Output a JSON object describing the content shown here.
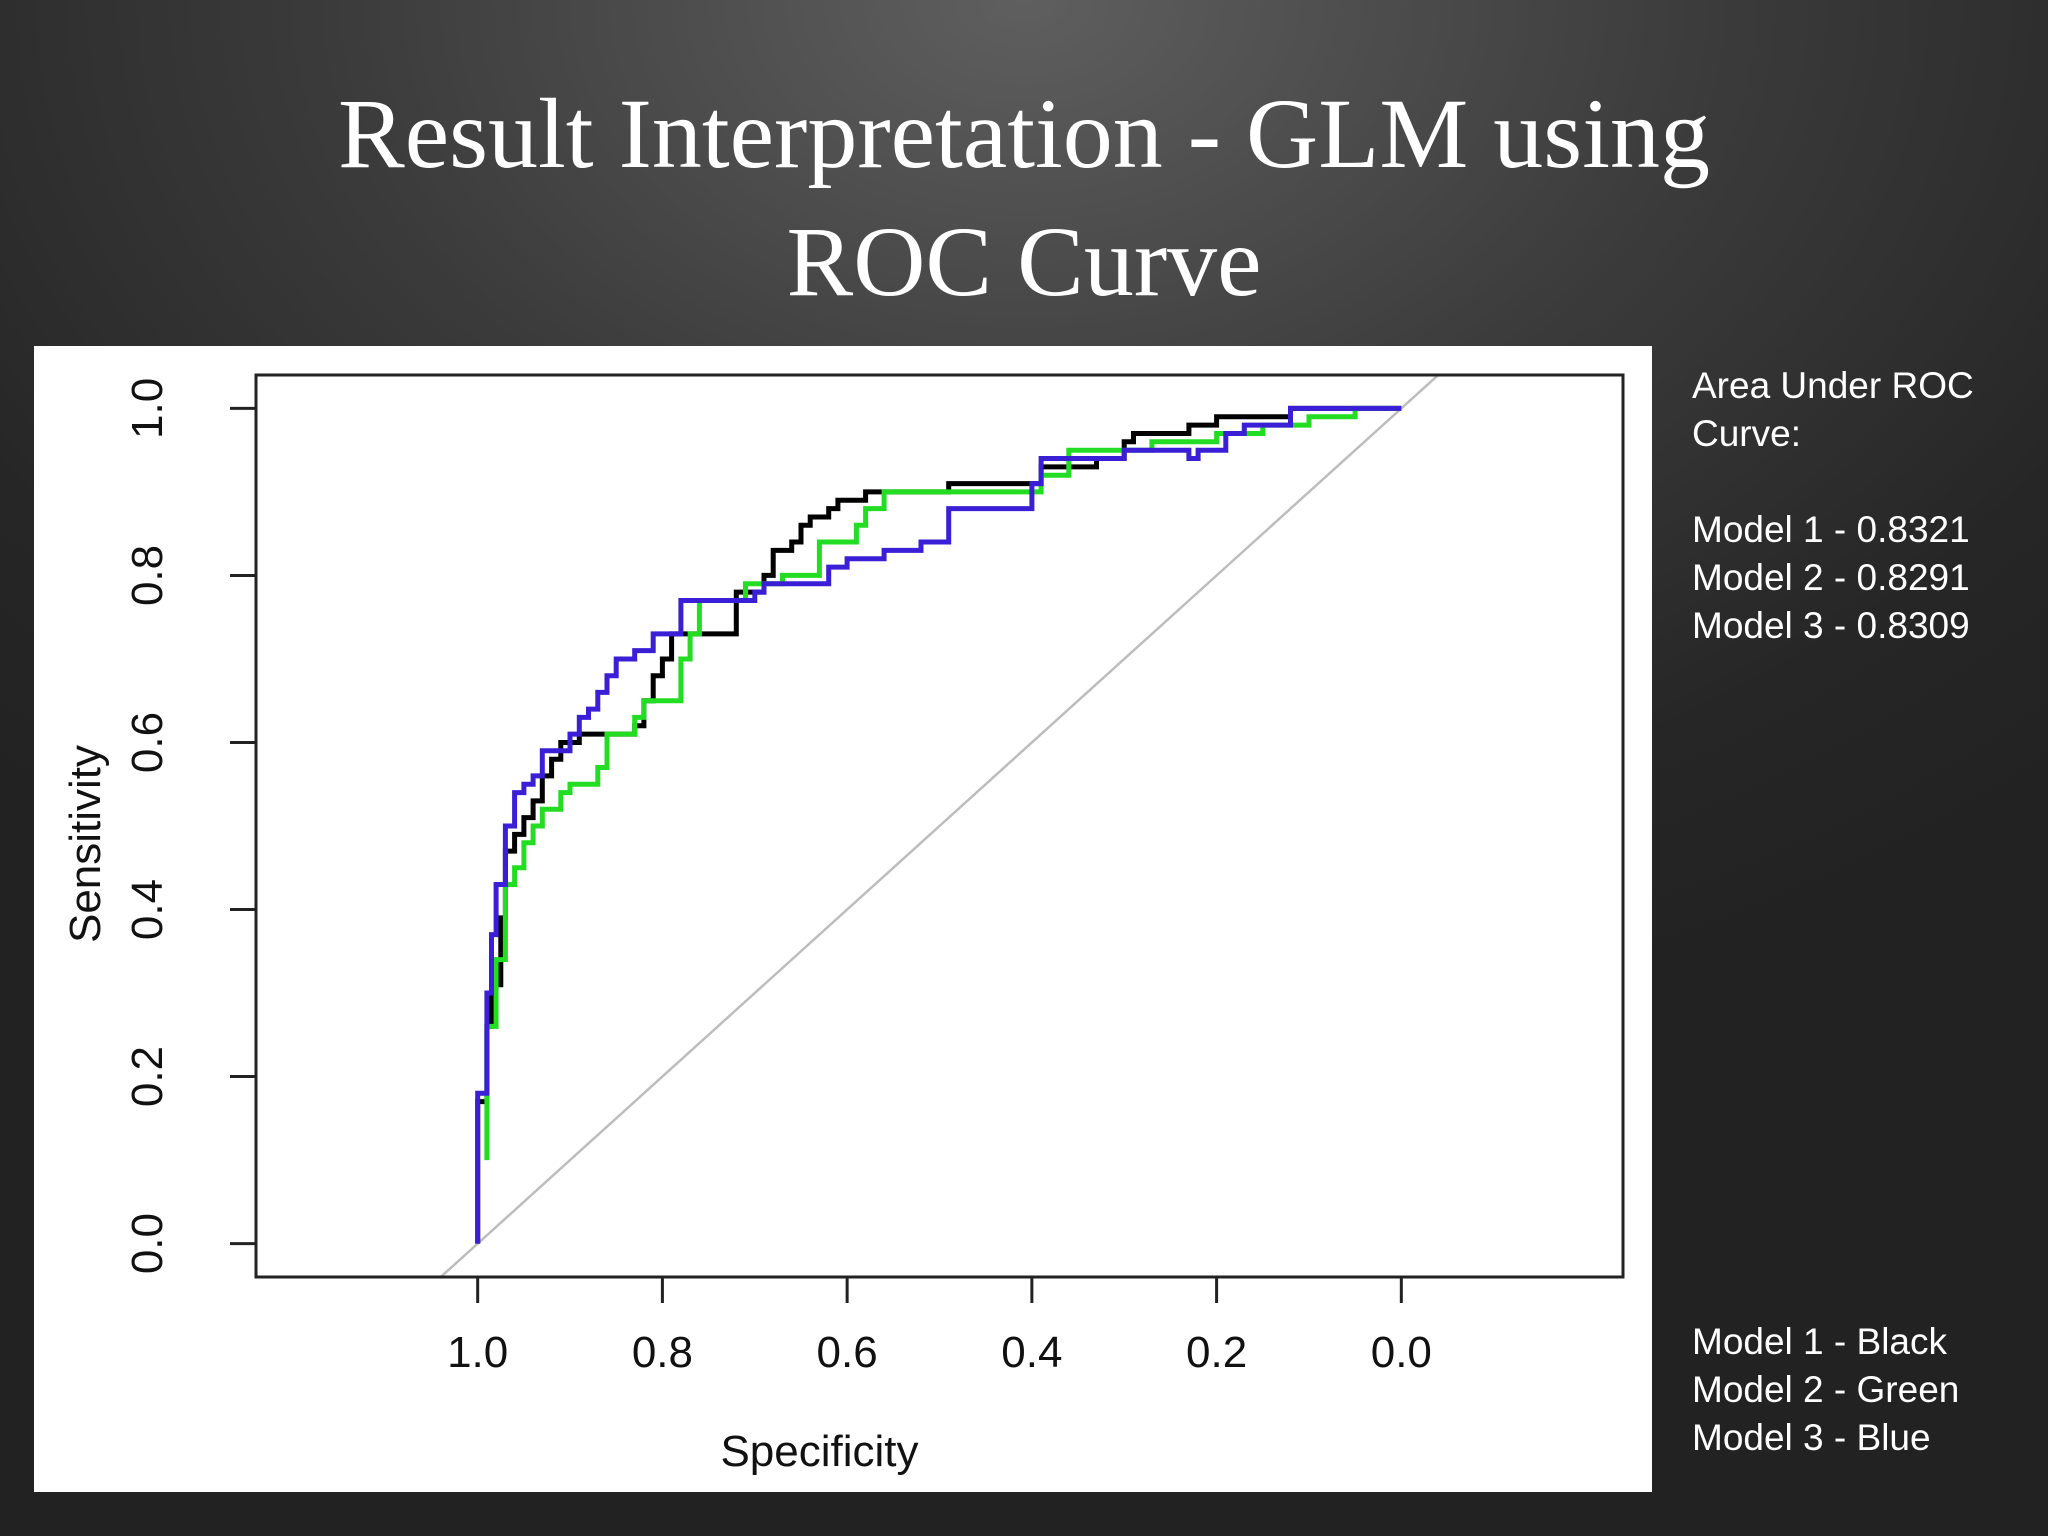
{
  "slide": {
    "title_line1": "Result Interpretation - GLM using",
    "title_line2": "ROC Curve"
  },
  "auc_panel": {
    "heading_line1": "Area Under ROC",
    "heading_line2": "Curve:",
    "items": [
      "Model 1 - 0.8321",
      "Model 2 - 0.8291",
      "Model 3 - 0.8309"
    ]
  },
  "legend_panel": {
    "items": [
      "Model 1 - Black",
      "Model 2 - Green",
      "Model 3 - Blue"
    ]
  },
  "chart_data": {
    "type": "line",
    "title": "",
    "xlabel": "Specificity",
    "ylabel": "Sensitivity",
    "x_reversed": true,
    "xlim": [
      1.24,
      -0.24
    ],
    "ylim": [
      -0.04,
      1.04
    ],
    "x_ticks": [
      "1.0",
      "0.8",
      "0.6",
      "0.4",
      "0.2",
      "0.0"
    ],
    "y_ticks": [
      "0.0",
      "0.2",
      "0.4",
      "0.6",
      "0.8",
      "1.0"
    ],
    "grid": false,
    "reference_line": {
      "from": [
        1.0,
        0.0
      ],
      "to": [
        0.0,
        1.0
      ],
      "color": "#bdbdbd"
    },
    "series": [
      {
        "name": "Model 1",
        "color": "#000000",
        "points": [
          [
            1.0,
            0.0
          ],
          [
            1.0,
            0.17
          ],
          [
            0.99,
            0.17
          ],
          [
            0.99,
            0.26
          ],
          [
            0.985,
            0.26
          ],
          [
            0.985,
            0.31
          ],
          [
            0.975,
            0.31
          ],
          [
            0.975,
            0.39
          ],
          [
            0.97,
            0.39
          ],
          [
            0.97,
            0.47
          ],
          [
            0.96,
            0.47
          ],
          [
            0.96,
            0.49
          ],
          [
            0.95,
            0.49
          ],
          [
            0.95,
            0.51
          ],
          [
            0.94,
            0.51
          ],
          [
            0.94,
            0.53
          ],
          [
            0.93,
            0.53
          ],
          [
            0.93,
            0.56
          ],
          [
            0.92,
            0.56
          ],
          [
            0.92,
            0.58
          ],
          [
            0.91,
            0.58
          ],
          [
            0.91,
            0.6
          ],
          [
            0.89,
            0.6
          ],
          [
            0.89,
            0.61
          ],
          [
            0.83,
            0.61
          ],
          [
            0.83,
            0.62
          ],
          [
            0.82,
            0.62
          ],
          [
            0.82,
            0.65
          ],
          [
            0.81,
            0.65
          ],
          [
            0.81,
            0.68
          ],
          [
            0.8,
            0.68
          ],
          [
            0.8,
            0.7
          ],
          [
            0.79,
            0.7
          ],
          [
            0.79,
            0.73
          ],
          [
            0.72,
            0.73
          ],
          [
            0.72,
            0.78
          ],
          [
            0.69,
            0.78
          ],
          [
            0.69,
            0.8
          ],
          [
            0.68,
            0.8
          ],
          [
            0.68,
            0.83
          ],
          [
            0.66,
            0.83
          ],
          [
            0.66,
            0.84
          ],
          [
            0.65,
            0.84
          ],
          [
            0.65,
            0.86
          ],
          [
            0.64,
            0.86
          ],
          [
            0.64,
            0.87
          ],
          [
            0.62,
            0.87
          ],
          [
            0.62,
            0.88
          ],
          [
            0.61,
            0.88
          ],
          [
            0.61,
            0.89
          ],
          [
            0.58,
            0.89
          ],
          [
            0.58,
            0.9
          ],
          [
            0.49,
            0.9
          ],
          [
            0.49,
            0.91
          ],
          [
            0.39,
            0.91
          ],
          [
            0.39,
            0.93
          ],
          [
            0.33,
            0.93
          ],
          [
            0.33,
            0.94
          ],
          [
            0.3,
            0.94
          ],
          [
            0.3,
            0.96
          ],
          [
            0.29,
            0.96
          ],
          [
            0.29,
            0.97
          ],
          [
            0.23,
            0.97
          ],
          [
            0.23,
            0.98
          ],
          [
            0.2,
            0.98
          ],
          [
            0.2,
            0.99
          ],
          [
            0.12,
            0.99
          ],
          [
            0.12,
            1.0
          ],
          [
            0.0,
            1.0
          ]
        ]
      },
      {
        "name": "Model 2",
        "color": "#22dd22",
        "points": [
          [
            0.99,
            0.1
          ],
          [
            0.99,
            0.26
          ],
          [
            0.98,
            0.26
          ],
          [
            0.98,
            0.34
          ],
          [
            0.97,
            0.34
          ],
          [
            0.97,
            0.43
          ],
          [
            0.96,
            0.43
          ],
          [
            0.96,
            0.45
          ],
          [
            0.95,
            0.45
          ],
          [
            0.95,
            0.48
          ],
          [
            0.94,
            0.48
          ],
          [
            0.94,
            0.5
          ],
          [
            0.93,
            0.5
          ],
          [
            0.93,
            0.52
          ],
          [
            0.91,
            0.52
          ],
          [
            0.91,
            0.54
          ],
          [
            0.9,
            0.54
          ],
          [
            0.9,
            0.55
          ],
          [
            0.87,
            0.55
          ],
          [
            0.87,
            0.57
          ],
          [
            0.86,
            0.57
          ],
          [
            0.86,
            0.61
          ],
          [
            0.83,
            0.61
          ],
          [
            0.83,
            0.63
          ],
          [
            0.82,
            0.63
          ],
          [
            0.82,
            0.65
          ],
          [
            0.78,
            0.65
          ],
          [
            0.78,
            0.7
          ],
          [
            0.77,
            0.7
          ],
          [
            0.77,
            0.73
          ],
          [
            0.76,
            0.73
          ],
          [
            0.76,
            0.77
          ],
          [
            0.71,
            0.77
          ],
          [
            0.71,
            0.79
          ],
          [
            0.67,
            0.79
          ],
          [
            0.67,
            0.8
          ],
          [
            0.63,
            0.8
          ],
          [
            0.63,
            0.84
          ],
          [
            0.59,
            0.84
          ],
          [
            0.59,
            0.86
          ],
          [
            0.58,
            0.86
          ],
          [
            0.58,
            0.88
          ],
          [
            0.56,
            0.88
          ],
          [
            0.56,
            0.9
          ],
          [
            0.39,
            0.9
          ],
          [
            0.39,
            0.92
          ],
          [
            0.36,
            0.92
          ],
          [
            0.36,
            0.95
          ],
          [
            0.27,
            0.95
          ],
          [
            0.27,
            0.96
          ],
          [
            0.2,
            0.96
          ],
          [
            0.2,
            0.97
          ],
          [
            0.15,
            0.97
          ],
          [
            0.15,
            0.98
          ],
          [
            0.1,
            0.98
          ],
          [
            0.1,
            0.99
          ],
          [
            0.05,
            0.99
          ],
          [
            0.05,
            1.0
          ],
          [
            0.0,
            1.0
          ]
        ]
      },
      {
        "name": "Model 3",
        "color": "#3a1fd6",
        "points": [
          [
            1.0,
            0.0
          ],
          [
            1.0,
            0.18
          ],
          [
            0.99,
            0.18
          ],
          [
            0.99,
            0.3
          ],
          [
            0.985,
            0.3
          ],
          [
            0.985,
            0.37
          ],
          [
            0.98,
            0.37
          ],
          [
            0.98,
            0.43
          ],
          [
            0.97,
            0.43
          ],
          [
            0.97,
            0.5
          ],
          [
            0.96,
            0.5
          ],
          [
            0.96,
            0.54
          ],
          [
            0.95,
            0.54
          ],
          [
            0.95,
            0.55
          ],
          [
            0.94,
            0.55
          ],
          [
            0.94,
            0.56
          ],
          [
            0.93,
            0.56
          ],
          [
            0.93,
            0.59
          ],
          [
            0.9,
            0.59
          ],
          [
            0.9,
            0.61
          ],
          [
            0.89,
            0.61
          ],
          [
            0.89,
            0.63
          ],
          [
            0.88,
            0.63
          ],
          [
            0.88,
            0.64
          ],
          [
            0.87,
            0.64
          ],
          [
            0.87,
            0.66
          ],
          [
            0.86,
            0.66
          ],
          [
            0.86,
            0.68
          ],
          [
            0.85,
            0.68
          ],
          [
            0.85,
            0.7
          ],
          [
            0.83,
            0.7
          ],
          [
            0.83,
            0.71
          ],
          [
            0.81,
            0.71
          ],
          [
            0.81,
            0.73
          ],
          [
            0.78,
            0.73
          ],
          [
            0.78,
            0.77
          ],
          [
            0.7,
            0.77
          ],
          [
            0.7,
            0.78
          ],
          [
            0.69,
            0.78
          ],
          [
            0.69,
            0.79
          ],
          [
            0.62,
            0.79
          ],
          [
            0.62,
            0.81
          ],
          [
            0.6,
            0.81
          ],
          [
            0.6,
            0.82
          ],
          [
            0.56,
            0.82
          ],
          [
            0.56,
            0.83
          ],
          [
            0.52,
            0.83
          ],
          [
            0.52,
            0.84
          ],
          [
            0.49,
            0.84
          ],
          [
            0.49,
            0.88
          ],
          [
            0.4,
            0.88
          ],
          [
            0.4,
            0.91
          ],
          [
            0.39,
            0.91
          ],
          [
            0.39,
            0.94
          ],
          [
            0.3,
            0.94
          ],
          [
            0.3,
            0.95
          ],
          [
            0.23,
            0.95
          ],
          [
            0.23,
            0.94
          ],
          [
            0.22,
            0.94
          ],
          [
            0.22,
            0.95
          ],
          [
            0.19,
            0.95
          ],
          [
            0.19,
            0.97
          ],
          [
            0.17,
            0.97
          ],
          [
            0.17,
            0.98
          ],
          [
            0.12,
            0.98
          ],
          [
            0.12,
            1.0
          ],
          [
            0.0,
            1.0
          ]
        ]
      }
    ]
  }
}
